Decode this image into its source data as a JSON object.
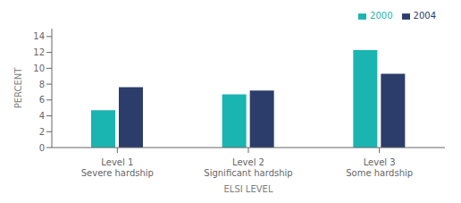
{
  "chart_data": {
    "type": "bar",
    "categories": [
      "Level 1\nSevere hardship",
      "Level 2\nSignificant hardship",
      "Level 3\nSome hardship"
    ],
    "series": [
      {
        "name": "2000",
        "color": "#1ab5b0",
        "values": [
          4.7,
          6.7,
          12.3
        ]
      },
      {
        "name": "2004",
        "color": "#2d3d6b",
        "values": [
          7.6,
          7.2,
          9.3
        ]
      }
    ],
    "xlabel": "ELSI LEVEL",
    "ylabel": "PERCENT",
    "ylim": [
      0,
      15
    ],
    "yticks": [
      0,
      2,
      4,
      6,
      8,
      10,
      12,
      14
    ],
    "grid": false,
    "legend": "upper right"
  }
}
